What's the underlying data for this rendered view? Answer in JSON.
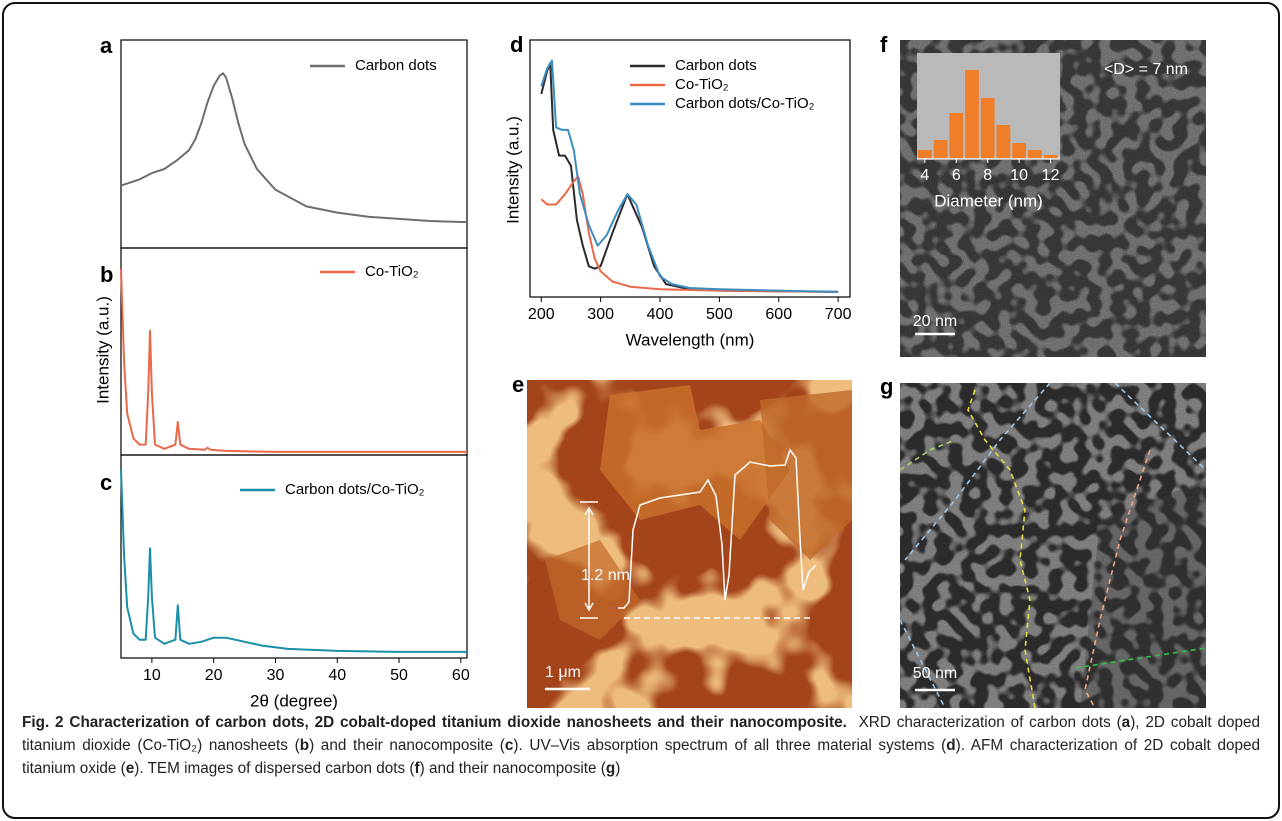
{
  "chart_data": [
    {
      "type": "line",
      "label": "a",
      "xlim": [
        5,
        61
      ],
      "ylim": [
        0,
        1
      ],
      "x": [
        5,
        8,
        10,
        12,
        14,
        16,
        17,
        18,
        19,
        20,
        21,
        21.5,
        22,
        23,
        24,
        25,
        27,
        30,
        35,
        40,
        45,
        50,
        55,
        60,
        61
      ],
      "series": [
        {
          "name": "Carbon dots",
          "color": "#6e6e6e",
          "values": [
            0.3,
            0.33,
            0.36,
            0.38,
            0.42,
            0.47,
            0.52,
            0.6,
            0.7,
            0.78,
            0.83,
            0.84,
            0.82,
            0.72,
            0.6,
            0.5,
            0.38,
            0.28,
            0.2,
            0.17,
            0.15,
            0.14,
            0.13,
            0.125,
            0.125
          ]
        }
      ]
    },
    {
      "type": "line",
      "label": "b",
      "ylabel": "Intensity (a.u.)",
      "xlim": [
        5,
        61
      ],
      "ylim": [
        0,
        1
      ],
      "x": [
        5,
        5.5,
        6,
        7,
        8,
        9,
        9.4,
        9.7,
        10,
        10.5,
        12,
        13.8,
        14.2,
        14.6,
        16,
        18.5,
        19,
        19.5,
        22,
        30,
        40,
        50,
        61
      ],
      "series": [
        {
          "name": "Co-TiO₂",
          "color": "#e8694a",
          "values": [
            0.9,
            0.45,
            0.2,
            0.08,
            0.05,
            0.05,
            0.3,
            0.6,
            0.3,
            0.05,
            0.03,
            0.05,
            0.16,
            0.05,
            0.03,
            0.025,
            0.035,
            0.025,
            0.02,
            0.015,
            0.015,
            0.015,
            0.015
          ]
        }
      ]
    },
    {
      "type": "line",
      "label": "c",
      "xlabel": "2θ (degree)",
      "xlim": [
        5,
        61
      ],
      "ylim": [
        0,
        1
      ],
      "xticks": [
        10,
        20,
        30,
        40,
        50,
        60
      ],
      "x": [
        5,
        5.5,
        6,
        7,
        8,
        9,
        9.4,
        9.7,
        10,
        10.5,
        12,
        13.8,
        14.2,
        14.6,
        16,
        18,
        20,
        22,
        25,
        28,
        32,
        40,
        50,
        61
      ],
      "series": [
        {
          "name": "Carbon dots/Co-TiO₂",
          "color": "#1a8fa8",
          "values": [
            0.93,
            0.5,
            0.25,
            0.12,
            0.09,
            0.09,
            0.3,
            0.54,
            0.3,
            0.1,
            0.07,
            0.09,
            0.26,
            0.09,
            0.07,
            0.08,
            0.1,
            0.1,
            0.08,
            0.06,
            0.045,
            0.035,
            0.03,
            0.03
          ]
        }
      ]
    },
    {
      "type": "multi-line",
      "label": "d",
      "xlabel": "Wavelength (nm)",
      "ylabel": "Intensity (a.u.)",
      "xlim": [
        181,
        720
      ],
      "ylim": [
        0,
        1
      ],
      "xticks": [
        200,
        300,
        400,
        500,
        600,
        700
      ],
      "series": [
        {
          "name": "Carbon dots",
          "color": "#2b2b2b",
          "x": [
            200,
            210,
            215,
            220,
            230,
            240,
            250,
            260,
            270,
            280,
            290,
            300,
            320,
            345,
            370,
            390,
            410,
            450,
            500,
            700
          ],
          "values": [
            0.79,
            0.88,
            0.91,
            0.65,
            0.55,
            0.55,
            0.51,
            0.3,
            0.2,
            0.12,
            0.11,
            0.12,
            0.25,
            0.4,
            0.27,
            0.12,
            0.05,
            0.03,
            0.025,
            0.02
          ]
        },
        {
          "name": "Co-TiO₂",
          "color": "#e8694a",
          "x": [
            200,
            210,
            225,
            240,
            255,
            262,
            270,
            280,
            290,
            300,
            320,
            350,
            400,
            500,
            700
          ],
          "values": [
            0.38,
            0.36,
            0.36,
            0.4,
            0.45,
            0.47,
            0.4,
            0.25,
            0.15,
            0.1,
            0.06,
            0.04,
            0.03,
            0.025,
            0.02
          ]
        },
        {
          "name": "Carbon dots/Co-TiO₂",
          "color": "#3d8ec0",
          "x": [
            200,
            210,
            218,
            225,
            235,
            245,
            255,
            265,
            280,
            295,
            310,
            330,
            345,
            360,
            380,
            400,
            420,
            450,
            500,
            700
          ],
          "values": [
            0.82,
            0.89,
            0.92,
            0.66,
            0.65,
            0.65,
            0.57,
            0.4,
            0.28,
            0.2,
            0.24,
            0.34,
            0.4,
            0.36,
            0.2,
            0.08,
            0.05,
            0.035,
            0.03,
            0.02
          ]
        }
      ]
    },
    {
      "type": "histogram",
      "label": "f",
      "xlabel": "Diameter (nm)",
      "annotation": "<D> = 7 nm",
      "scale_bar": "20 nm",
      "color": "#f07d28",
      "xlim": [
        3.5,
        12.6
      ],
      "ylim": [
        0,
        100
      ],
      "xticks": [
        4,
        6,
        8,
        10,
        12
      ],
      "bins": [
        3.5,
        4.5,
        5.5,
        6.5,
        7.5,
        8.5,
        9.5,
        10.5,
        11.5,
        12.5
      ],
      "counts": [
        8,
        18,
        45,
        88,
        60,
        33,
        15,
        8,
        3
      ]
    }
  ],
  "images": [
    {
      "label": "e",
      "annotation": "1.2 nm",
      "scale_bar": "1 μm"
    },
    {
      "label": "g",
      "scale_bar": "50 nm"
    }
  ],
  "caption": {
    "title": "Fig. 2 Characterization of carbon dots, 2D cobalt-doped titanium dioxide nanosheets and their nanocomposite.",
    "body": [
      {
        "text": "XRD characterization of carbon dots ("
      },
      {
        "text": "a",
        "bold": true
      },
      {
        "text": "), 2D cobalt doped titanium dioxide (Co-TiO₂) nanosheets ("
      },
      {
        "text": "b",
        "bold": true
      },
      {
        "text": ") and their nanocomposite ("
      },
      {
        "text": "c",
        "bold": true
      },
      {
        "text": "). UV–Vis absorption spectrum of all three material systems ("
      },
      {
        "text": "d",
        "bold": true
      },
      {
        "text": "). AFM characterization of 2D cobalt doped titanium oxide ("
      },
      {
        "text": "e",
        "bold": true
      },
      {
        "text": "). TEM images of dispersed carbon dots ("
      },
      {
        "text": "f",
        "bold": true
      },
      {
        "text": ") and their nanocomposite ("
      },
      {
        "text": "g",
        "bold": true
      },
      {
        "text": ")"
      }
    ]
  }
}
